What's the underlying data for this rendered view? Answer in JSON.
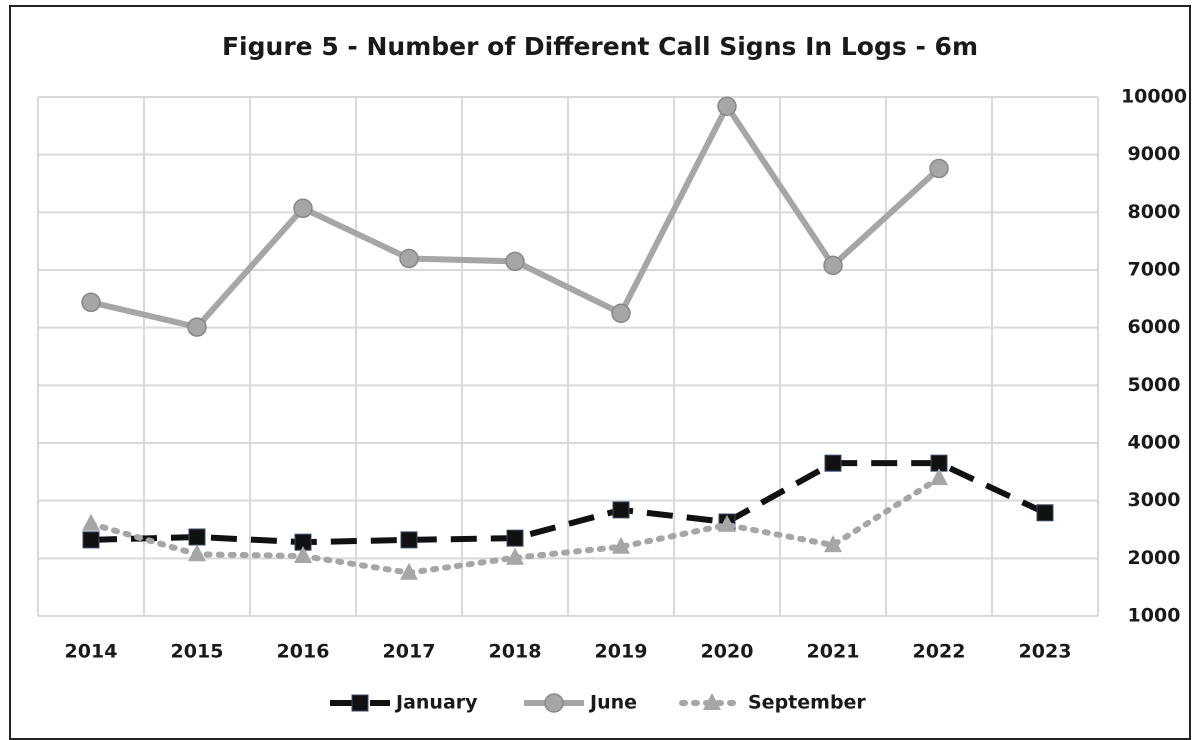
{
  "chart_data": {
    "type": "line",
    "title": "Figure 5 - Number of Different Call Signs In Logs - 6m",
    "categories": [
      "2014",
      "2015",
      "2016",
      "2017",
      "2018",
      "2019",
      "2020",
      "2021",
      "2022",
      "2023"
    ],
    "series": [
      {
        "name": "January",
        "color": "#111111",
        "dash": "dashed",
        "marker": "square",
        "values": [
          2320,
          2370,
          2280,
          2320,
          2350,
          2840,
          2630,
          3650,
          3650,
          2790
        ]
      },
      {
        "name": "June",
        "color": "#a6a6a6",
        "dash": "solid",
        "marker": "circle",
        "values": [
          6440,
          6010,
          8070,
          7200,
          7150,
          6250,
          9840,
          7080,
          8760,
          null
        ]
      },
      {
        "name": "September",
        "color": "#a6a6a6",
        "dash": "dotted",
        "marker": "triangle",
        "values": [
          2600,
          2070,
          2040,
          1750,
          2010,
          2200,
          2580,
          2230,
          3390,
          null
        ]
      }
    ],
    "ylim": [
      1000,
      10000
    ],
    "yticks": [
      1000,
      2000,
      3000,
      4000,
      5000,
      6000,
      7000,
      8000,
      9000,
      10000
    ],
    "y_axis_side": "right",
    "grid": true,
    "legend": "bottom"
  }
}
